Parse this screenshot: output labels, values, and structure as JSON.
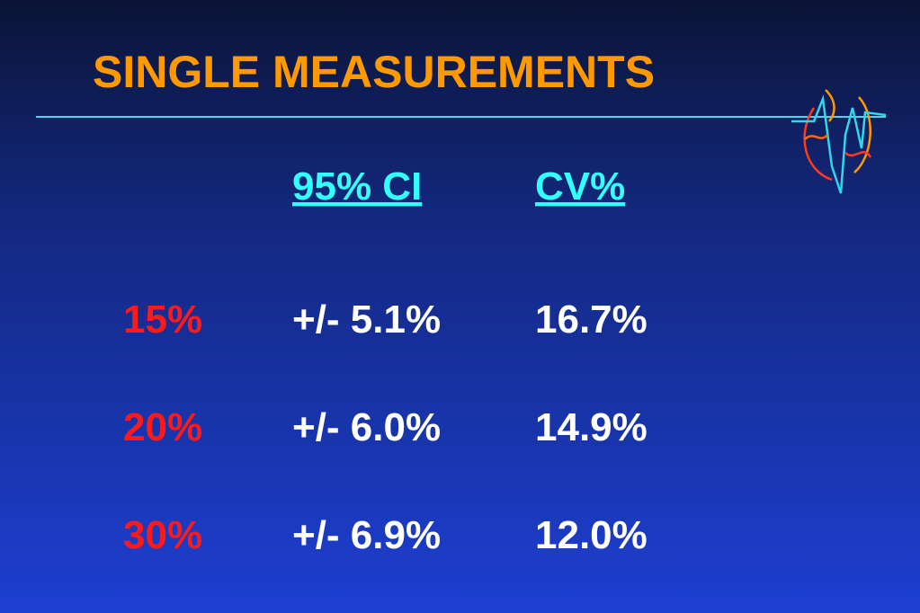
{
  "title": "SINGLE MEASUREMENTS",
  "table": {
    "header": [
      "95% CI",
      "CV%"
    ],
    "rows": [
      [
        "15%",
        "+/- 5.1%",
        "16.7%"
      ],
      [
        "20%",
        "+/- 6.0%",
        "14.9%"
      ],
      [
        "30%",
        "+/- 6.9%",
        "12.0%"
      ]
    ]
  }
}
